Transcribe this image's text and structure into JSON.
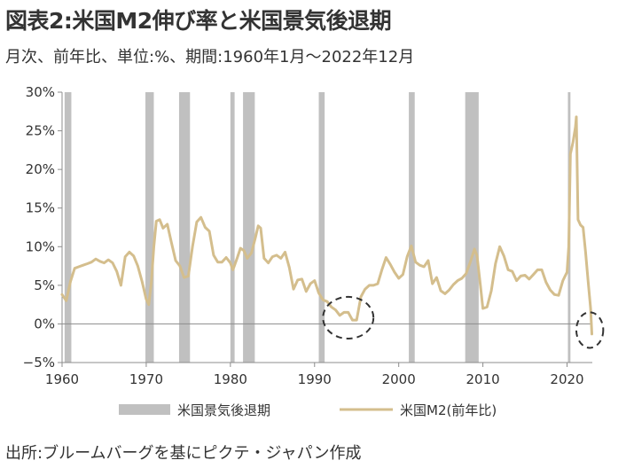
{
  "title": "図表2:米国M2伸び率と米国景気後退期",
  "subtitle": "月次、前年比、単位:%、期間:1960年1月〜2022年12月",
  "source": "出所:ブルームバーグを基にピクテ・ジャパン作成",
  "colors": {
    "recession": "#c0c0c0",
    "m2_line": "#d4be8d",
    "axis": "#8c8c8c",
    "highlight_circle": "#333333"
  },
  "chart_data": {
    "type": "line",
    "title": "図表2:米国M2伸び率と米国景気後退期",
    "xlabel": "",
    "ylabel": "",
    "xlim": [
      1960,
      2023
    ],
    "ylim": [
      -5,
      30
    ],
    "x_ticks": [
      1960,
      1970,
      1980,
      1990,
      2000,
      2010,
      2020
    ],
    "y_ticks": [
      {
        "value": 30,
        "label": "30%"
      },
      {
        "value": 25,
        "label": "25%"
      },
      {
        "value": 20,
        "label": "20%"
      },
      {
        "value": 15,
        "label": "15%"
      },
      {
        "value": 10,
        "label": "10%"
      },
      {
        "value": 5,
        "label": "5%"
      },
      {
        "value": 0,
        "label": "0%"
      },
      {
        "value": -5,
        "label": "−5%"
      }
    ],
    "legend": {
      "position": "bottom",
      "entries": [
        {
          "label": "米国景気後退期",
          "kind": "band"
        },
        {
          "label": "米国M2(前年比)",
          "kind": "line"
        }
      ]
    },
    "recessions": [
      {
        "start": 1960.3,
        "end": 1961.1
      },
      {
        "start": 1969.9,
        "end": 1970.9
      },
      {
        "start": 1973.9,
        "end": 1975.2
      },
      {
        "start": 1980.0,
        "end": 1980.5
      },
      {
        "start": 1981.5,
        "end": 1982.9
      },
      {
        "start": 1990.5,
        "end": 1991.2
      },
      {
        "start": 2001.2,
        "end": 2001.9
      },
      {
        "start": 2007.9,
        "end": 2009.5
      },
      {
        "start": 2020.1,
        "end": 2020.4
      }
    ],
    "series": [
      {
        "name": "米国M2(前年比)",
        "points": [
          [
            1960.0,
            3.8
          ],
          [
            1960.5,
            3.0
          ],
          [
            1961.0,
            5.5
          ],
          [
            1961.5,
            7.2
          ],
          [
            1962.0,
            7.4
          ],
          [
            1962.5,
            7.6
          ],
          [
            1963.0,
            7.8
          ],
          [
            1963.5,
            8.0
          ],
          [
            1964.0,
            8.4
          ],
          [
            1964.5,
            8.1
          ],
          [
            1965.0,
            7.9
          ],
          [
            1965.5,
            8.3
          ],
          [
            1966.0,
            7.9
          ],
          [
            1966.5,
            6.8
          ],
          [
            1967.0,
            5.0
          ],
          [
            1967.5,
            8.7
          ],
          [
            1968.0,
            9.3
          ],
          [
            1968.5,
            8.8
          ],
          [
            1969.0,
            7.5
          ],
          [
            1969.5,
            5.5
          ],
          [
            1970.0,
            3.2
          ],
          [
            1970.3,
            2.5
          ],
          [
            1970.6,
            5.3
          ],
          [
            1970.9,
            10.0
          ],
          [
            1971.2,
            13.3
          ],
          [
            1971.6,
            13.5
          ],
          [
            1972.0,
            12.4
          ],
          [
            1972.5,
            12.9
          ],
          [
            1973.0,
            10.5
          ],
          [
            1973.5,
            8.2
          ],
          [
            1974.0,
            7.5
          ],
          [
            1974.5,
            6.0
          ],
          [
            1975.0,
            6.2
          ],
          [
            1975.5,
            10.0
          ],
          [
            1976.0,
            13.2
          ],
          [
            1976.5,
            13.8
          ],
          [
            1977.0,
            12.5
          ],
          [
            1977.5,
            12.0
          ],
          [
            1978.0,
            8.9
          ],
          [
            1978.5,
            8.0
          ],
          [
            1979.0,
            8.0
          ],
          [
            1979.5,
            8.6
          ],
          [
            1980.0,
            7.9
          ],
          [
            1980.3,
            7.0
          ],
          [
            1980.8,
            8.5
          ],
          [
            1981.2,
            9.8
          ],
          [
            1981.6,
            9.5
          ],
          [
            1982.0,
            8.5
          ],
          [
            1982.5,
            9.2
          ],
          [
            1983.0,
            11.3
          ],
          [
            1983.3,
            12.7
          ],
          [
            1983.6,
            12.4
          ],
          [
            1984.0,
            8.5
          ],
          [
            1984.5,
            7.9
          ],
          [
            1985.0,
            8.7
          ],
          [
            1985.5,
            8.9
          ],
          [
            1986.0,
            8.5
          ],
          [
            1986.5,
            9.3
          ],
          [
            1987.0,
            7.3
          ],
          [
            1987.5,
            4.5
          ],
          [
            1988.0,
            5.7
          ],
          [
            1988.5,
            5.8
          ],
          [
            1989.0,
            4.2
          ],
          [
            1989.5,
            5.2
          ],
          [
            1990.0,
            5.6
          ],
          [
            1990.5,
            4.0
          ],
          [
            1991.0,
            3.1
          ],
          [
            1991.5,
            2.9
          ],
          [
            1992.0,
            2.2
          ],
          [
            1992.5,
            1.8
          ],
          [
            1993.0,
            1.1
          ],
          [
            1993.5,
            1.5
          ],
          [
            1994.0,
            1.5
          ],
          [
            1994.5,
            0.5
          ],
          [
            1995.0,
            0.5
          ],
          [
            1995.5,
            3.5
          ],
          [
            1996.0,
            4.5
          ],
          [
            1996.5,
            5.0
          ],
          [
            1997.0,
            5.0
          ],
          [
            1997.5,
            5.2
          ],
          [
            1998.0,
            7.0
          ],
          [
            1998.5,
            8.6
          ],
          [
            1999.0,
            7.7
          ],
          [
            1999.5,
            6.7
          ],
          [
            2000.0,
            5.9
          ],
          [
            2000.5,
            6.4
          ],
          [
            2001.0,
            8.7
          ],
          [
            2001.5,
            10.1
          ],
          [
            2002.0,
            8.0
          ],
          [
            2002.5,
            7.6
          ],
          [
            2003.0,
            7.4
          ],
          [
            2003.5,
            8.2
          ],
          [
            2004.0,
            5.2
          ],
          [
            2004.5,
            6.0
          ],
          [
            2005.0,
            4.3
          ],
          [
            2005.5,
            3.9
          ],
          [
            2006.0,
            4.4
          ],
          [
            2006.5,
            5.1
          ],
          [
            2007.0,
            5.6
          ],
          [
            2007.5,
            5.9
          ],
          [
            2008.0,
            6.5
          ],
          [
            2008.5,
            8.0
          ],
          [
            2009.0,
            9.7
          ],
          [
            2009.3,
            8.8
          ],
          [
            2009.7,
            5.0
          ],
          [
            2010.0,
            2.0
          ],
          [
            2010.5,
            2.2
          ],
          [
            2011.0,
            4.3
          ],
          [
            2011.5,
            7.8
          ],
          [
            2012.0,
            10.0
          ],
          [
            2012.5,
            8.8
          ],
          [
            2013.0,
            7.0
          ],
          [
            2013.5,
            6.8
          ],
          [
            2014.0,
            5.6
          ],
          [
            2014.5,
            6.2
          ],
          [
            2015.0,
            6.3
          ],
          [
            2015.5,
            5.8
          ],
          [
            2016.0,
            6.4
          ],
          [
            2016.5,
            7.0
          ],
          [
            2017.0,
            7.0
          ],
          [
            2017.5,
            5.4
          ],
          [
            2018.0,
            4.4
          ],
          [
            2018.5,
            3.8
          ],
          [
            2019.0,
            3.7
          ],
          [
            2019.5,
            5.6
          ],
          [
            2020.0,
            6.7
          ],
          [
            2020.2,
            10.0
          ],
          [
            2020.4,
            22.0
          ],
          [
            2020.7,
            23.5
          ],
          [
            2021.0,
            25.5
          ],
          [
            2021.1,
            26.8
          ],
          [
            2021.3,
            13.5
          ],
          [
            2021.6,
            12.8
          ],
          [
            2021.9,
            12.5
          ],
          [
            2022.2,
            9.3
          ],
          [
            2022.5,
            5.5
          ],
          [
            2022.8,
            2.0
          ],
          [
            2022.95,
            -1.3
          ]
        ]
      }
    ],
    "annotations": [
      {
        "kind": "dashed-circle",
        "x": 1994.0,
        "y": 0.8,
        "rx_years": 3.0,
        "ry_percent": 2.7
      },
      {
        "kind": "dashed-circle",
        "x": 2022.7,
        "y": -0.8,
        "rx_years": 1.6,
        "ry_percent": 2.3
      }
    ]
  }
}
